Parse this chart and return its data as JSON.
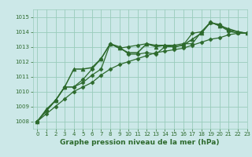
{
  "title": "Graphe pression niveau de la mer (hPa)",
  "background_color": "#cce8e8",
  "grid_color": "#99ccbb",
  "line_color": "#2d6a2d",
  "xlim": [
    -0.5,
    23
  ],
  "ylim": [
    1007.5,
    1015.5
  ],
  "yticks": [
    1008,
    1009,
    1010,
    1011,
    1012,
    1013,
    1014,
    1015
  ],
  "xticks": [
    0,
    1,
    2,
    3,
    4,
    5,
    6,
    7,
    8,
    9,
    10,
    11,
    12,
    13,
    14,
    15,
    16,
    17,
    18,
    19,
    20,
    21,
    22,
    23
  ],
  "series": [
    [
      1008.0,
      1008.7,
      1009.4,
      1010.3,
      1010.3,
      1010.8,
      1011.5,
      1012.2,
      1013.2,
      1012.9,
      1013.0,
      1013.1,
      1013.2,
      1013.1,
      1013.1,
      1013.1,
      1013.2,
      1013.2,
      1014.0,
      1014.6,
      1014.5,
      1014.1,
      1014.0,
      1013.9
    ],
    [
      1008.0,
      1008.8,
      1009.4,
      1010.3,
      1011.5,
      1011.5,
      1011.6,
      1012.2,
      1013.2,
      1012.9,
      1012.6,
      1012.6,
      1013.2,
      1013.0,
      1013.1,
      1013.0,
      1013.1,
      1013.5,
      1013.9,
      1014.65,
      1014.4,
      1014.2,
      1014.0,
      1013.9
    ],
    [
      1008.0,
      1008.7,
      1009.4,
      1010.3,
      1010.3,
      1010.6,
      1011.1,
      1011.5,
      1013.2,
      1013.0,
      1012.5,
      1012.5,
      1012.6,
      1012.5,
      1013.0,
      1013.0,
      1013.1,
      1013.9,
      1014.0,
      1014.65,
      1014.4,
      1014.05,
      1013.9,
      1013.9
    ],
    [
      1008.0,
      1008.5,
      1009.0,
      1009.5,
      1010.0,
      1010.3,
      1010.6,
      1011.1,
      1011.5,
      1011.8,
      1012.0,
      1012.2,
      1012.4,
      1012.6,
      1012.7,
      1012.8,
      1012.9,
      1013.1,
      1013.3,
      1013.5,
      1013.6,
      1013.8,
      1013.9,
      1013.9
    ]
  ],
  "markers": [
    "D",
    "^",
    "D",
    "D"
  ],
  "marker_sizes": [
    2.5,
    3.5,
    2.5,
    2.5
  ],
  "linewidths": [
    0.9,
    1.1,
    0.9,
    0.9
  ],
  "title_fontsize": 6.5,
  "tick_fontsize": 5.0
}
